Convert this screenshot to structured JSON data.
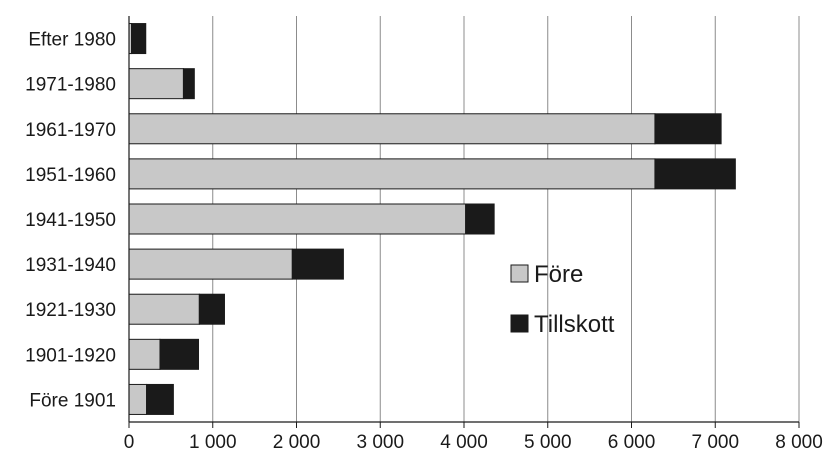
{
  "chart_data": {
    "type": "bar",
    "orientation": "horizontal",
    "stacked": true,
    "categories": [
      "Efter 1980",
      "1971-1980",
      "1961-1970",
      "1951-1960",
      "1941-1950",
      "1931-1940",
      "1921-1930",
      "1901-1920",
      "Före 1901"
    ],
    "series": [
      {
        "name": "Före",
        "color": "#c8c8c8",
        "values": [
          30,
          650,
          6280,
          6280,
          4020,
          1950,
          840,
          370,
          210
        ]
      },
      {
        "name": "Tillskott",
        "color": "#1a1a1a",
        "values": [
          170,
          130,
          790,
          960,
          340,
          610,
          300,
          460,
          320
        ]
      }
    ],
    "x_ticks": [
      "0",
      "1 000",
      "2 000",
      "3 000",
      "4 000",
      "5 000",
      "6 000",
      "7 000",
      "8 000"
    ],
    "xlim": [
      0,
      8000
    ],
    "grid": "vertical",
    "legend_position": "lower-right",
    "title": "",
    "xlabel": "",
    "ylabel": ""
  }
}
